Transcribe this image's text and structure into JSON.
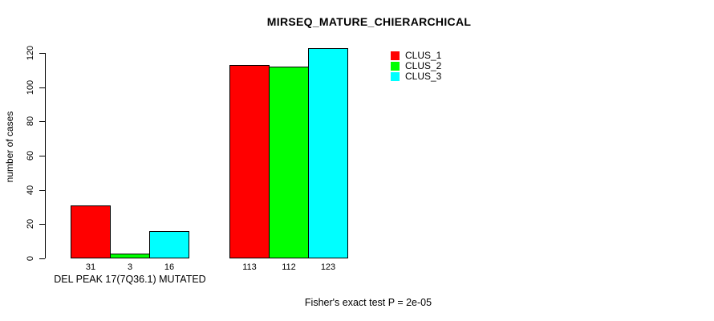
{
  "chart_data": {
    "type": "bar",
    "title": "MIRSEQ_MATURE_CHIERARCHICAL",
    "ylabel": "number of cases",
    "xlabel": "",
    "ylim": [
      0,
      120
    ],
    "yticks": [
      0,
      20,
      40,
      60,
      80,
      100,
      120
    ],
    "grid": false,
    "legend_position": "top-right",
    "background_color": "#ffffff",
    "bar_outline_color": "#000000",
    "series": [
      {
        "name": "CLUS_1",
        "color": "#ff0000"
      },
      {
        "name": "CLUS_2",
        "color": "#00ff00"
      },
      {
        "name": "CLUS_3",
        "color": "#00ffff"
      }
    ],
    "groups": [
      {
        "label": "DEL PEAK 17(7Q36.1) MUTATED",
        "values": [
          31,
          3,
          16
        ]
      },
      {
        "label": "",
        "values": [
          113,
          112,
          123
        ]
      }
    ],
    "annotation": "Fisher's exact test P = 2e-05"
  }
}
